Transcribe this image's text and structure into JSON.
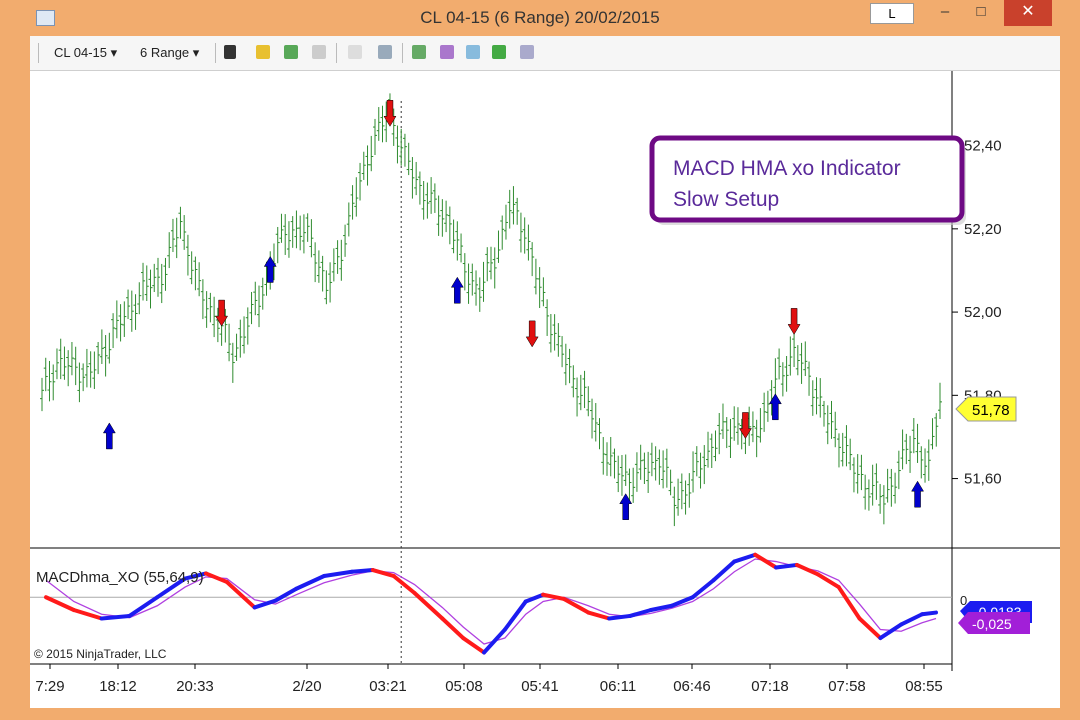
{
  "window": {
    "title": "CL 04-15 (6 Range)  20/02/2015",
    "l_button": "L",
    "minimize": "–",
    "maximize": "□",
    "close": "✕"
  },
  "toolbar": {
    "instrument": "CL 04-15",
    "period": "6 Range",
    "dropdown_arrow": "▾"
  },
  "colors": {
    "price_bar": "#2e8b2e",
    "up_arrow": "#0000cc",
    "down_arrow": "#e01010",
    "macd_rising": "#1c1cf0",
    "macd_falling": "#ff1a1a",
    "signal": "#b040e0",
    "callout_border": "#6e0a84",
    "callout_text": "#5a2a9a"
  },
  "annotation": {
    "line1": "MACD HMA xo Indicator",
    "line2": "Slow Setup"
  },
  "price_panel": {
    "y_ticks": [
      "52,40",
      "52,20",
      "52,00",
      "51,80",
      "51,60"
    ],
    "current_price": "51,78"
  },
  "indicator_panel": {
    "label": "MACDhma_XO (55,64,9)",
    "zero_label": "0",
    "macd_value": "-0,0183",
    "signal_value": "-0,025"
  },
  "copyright": "© 2015 NinjaTrader, LLC",
  "chart_data": {
    "type": "line",
    "title": "CL 04-15 (6 Range)  20/02/2015",
    "x_ticks": [
      "7:29",
      "18:12",
      "20:33",
      "2/20",
      "03:21",
      "05:08",
      "05:41",
      "06:11",
      "06:46",
      "07:18",
      "07:58",
      "08:55"
    ],
    "ylim": [
      51.45,
      52.56
    ],
    "price_path": [
      [
        0,
        51.8
      ],
      [
        4,
        51.88
      ],
      [
        13,
        51.85
      ],
      [
        19,
        51.95
      ],
      [
        27,
        52.05
      ],
      [
        33,
        52.1
      ],
      [
        37,
        52.22
      ],
      [
        42,
        52.05
      ],
      [
        47,
        51.98
      ],
      [
        51,
        51.9
      ],
      [
        55,
        51.97
      ],
      [
        61,
        52.1
      ],
      [
        65,
        52.2
      ],
      [
        72,
        52.18
      ],
      [
        76,
        52.05
      ],
      [
        80,
        52.15
      ],
      [
        84,
        52.28
      ],
      [
        88,
        52.4
      ],
      [
        93,
        52.48
      ],
      [
        97,
        52.37
      ],
      [
        101,
        52.3
      ],
      [
        105,
        52.25
      ],
      [
        109,
        52.22
      ],
      [
        113,
        52.1
      ],
      [
        117,
        52.05
      ],
      [
        121,
        52.13
      ],
      [
        125,
        52.25
      ],
      [
        129,
        52.2
      ],
      [
        133,
        52.05
      ],
      [
        137,
        51.95
      ],
      [
        141,
        51.85
      ],
      [
        145,
        51.8
      ],
      [
        149,
        51.7
      ],
      [
        153,
        51.62
      ],
      [
        157,
        51.6
      ],
      [
        161,
        51.62
      ],
      [
        165,
        51.65
      ],
      [
        169,
        51.55
      ],
      [
        173,
        51.58
      ],
      [
        177,
        51.65
      ],
      [
        181,
        51.7
      ],
      [
        185,
        51.73
      ],
      [
        189,
        51.7
      ],
      [
        193,
        51.75
      ],
      [
        197,
        51.85
      ],
      [
        201,
        51.9
      ],
      [
        205,
        51.85
      ],
      [
        209,
        51.75
      ],
      [
        213,
        51.7
      ],
      [
        217,
        51.62
      ],
      [
        221,
        51.58
      ],
      [
        225,
        51.55
      ],
      [
        229,
        51.62
      ],
      [
        233,
        51.7
      ],
      [
        237,
        51.62
      ],
      [
        240,
        51.8
      ]
    ],
    "up_signals": [
      {
        "index": 18,
        "price": 51.7
      },
      {
        "index": 61,
        "price": 52.1
      },
      {
        "index": 111,
        "price": 52.05
      },
      {
        "index": 156,
        "price": 51.53
      },
      {
        "index": 196,
        "price": 51.77
      },
      {
        "index": 234,
        "price": 51.56
      }
    ],
    "down_signals": [
      {
        "index": 48,
        "price": 52.0
      },
      {
        "index": 93,
        "price": 52.48
      },
      {
        "index": 131,
        "price": 51.95
      },
      {
        "index": 188,
        "price": 51.73
      },
      {
        "index": 201,
        "price": 51.98
      }
    ],
    "vertical_marker_index": 96,
    "series": [
      {
        "name": "MACDhma_XO (55,64,9)",
        "role": "macd",
        "points": [
          [
            0,
            0.0
          ],
          [
            8,
            -0.015
          ],
          [
            16,
            -0.025
          ],
          [
            24,
            -0.022
          ],
          [
            32,
            0.0
          ],
          [
            40,
            0.022
          ],
          [
            46,
            0.028
          ],
          [
            52,
            0.018
          ],
          [
            60,
            -0.012
          ],
          [
            66,
            -0.004
          ],
          [
            72,
            0.01
          ],
          [
            80,
            0.025
          ],
          [
            88,
            0.03
          ],
          [
            94,
            0.032
          ],
          [
            100,
            0.025
          ],
          [
            106,
            0.005
          ],
          [
            114,
            -0.025
          ],
          [
            120,
            -0.048
          ],
          [
            126,
            -0.065
          ],
          [
            132,
            -0.038
          ],
          [
            138,
            -0.005
          ],
          [
            143,
            0.003
          ],
          [
            149,
            -0.002
          ],
          [
            156,
            -0.018
          ],
          [
            162,
            -0.025
          ],
          [
            168,
            -0.022
          ],
          [
            174,
            -0.015
          ],
          [
            180,
            -0.01
          ],
          [
            186,
            0.0
          ],
          [
            192,
            0.02
          ],
          [
            198,
            0.042
          ],
          [
            204,
            0.05
          ],
          [
            210,
            0.035
          ],
          [
            216,
            0.038
          ],
          [
            222,
            0.027
          ],
          [
            228,
            0.012
          ],
          [
            234,
            -0.025
          ],
          [
            240,
            -0.048
          ],
          [
            246,
            -0.032
          ],
          [
            252,
            -0.02
          ],
          [
            256,
            -0.018
          ]
        ]
      },
      {
        "name": "signal",
        "role": "signal",
        "points": [
          [
            0,
            0.02
          ],
          [
            8,
            -0.005
          ],
          [
            16,
            -0.02
          ],
          [
            24,
            -0.024
          ],
          [
            32,
            -0.01
          ],
          [
            40,
            0.012
          ],
          [
            46,
            0.024
          ],
          [
            52,
            0.022
          ],
          [
            60,
            -0.003
          ],
          [
            66,
            -0.008
          ],
          [
            72,
            0.003
          ],
          [
            80,
            0.017
          ],
          [
            88,
            0.026
          ],
          [
            94,
            0.031
          ],
          [
            100,
            0.029
          ],
          [
            106,
            0.015
          ],
          [
            114,
            -0.012
          ],
          [
            120,
            -0.035
          ],
          [
            126,
            -0.055
          ],
          [
            132,
            -0.048
          ],
          [
            138,
            -0.02
          ],
          [
            143,
            -0.005
          ],
          [
            149,
            0.0
          ],
          [
            156,
            -0.01
          ],
          [
            162,
            -0.02
          ],
          [
            168,
            -0.023
          ],
          [
            174,
            -0.019
          ],
          [
            180,
            -0.013
          ],
          [
            186,
            -0.005
          ],
          [
            192,
            0.01
          ],
          [
            198,
            0.03
          ],
          [
            204,
            0.045
          ],
          [
            210,
            0.042
          ],
          [
            216,
            0.036
          ],
          [
            222,
            0.031
          ],
          [
            228,
            0.02
          ],
          [
            234,
            -0.008
          ],
          [
            240,
            -0.038
          ],
          [
            246,
            -0.04
          ],
          [
            252,
            -0.03
          ],
          [
            256,
            -0.025
          ]
        ]
      }
    ]
  }
}
